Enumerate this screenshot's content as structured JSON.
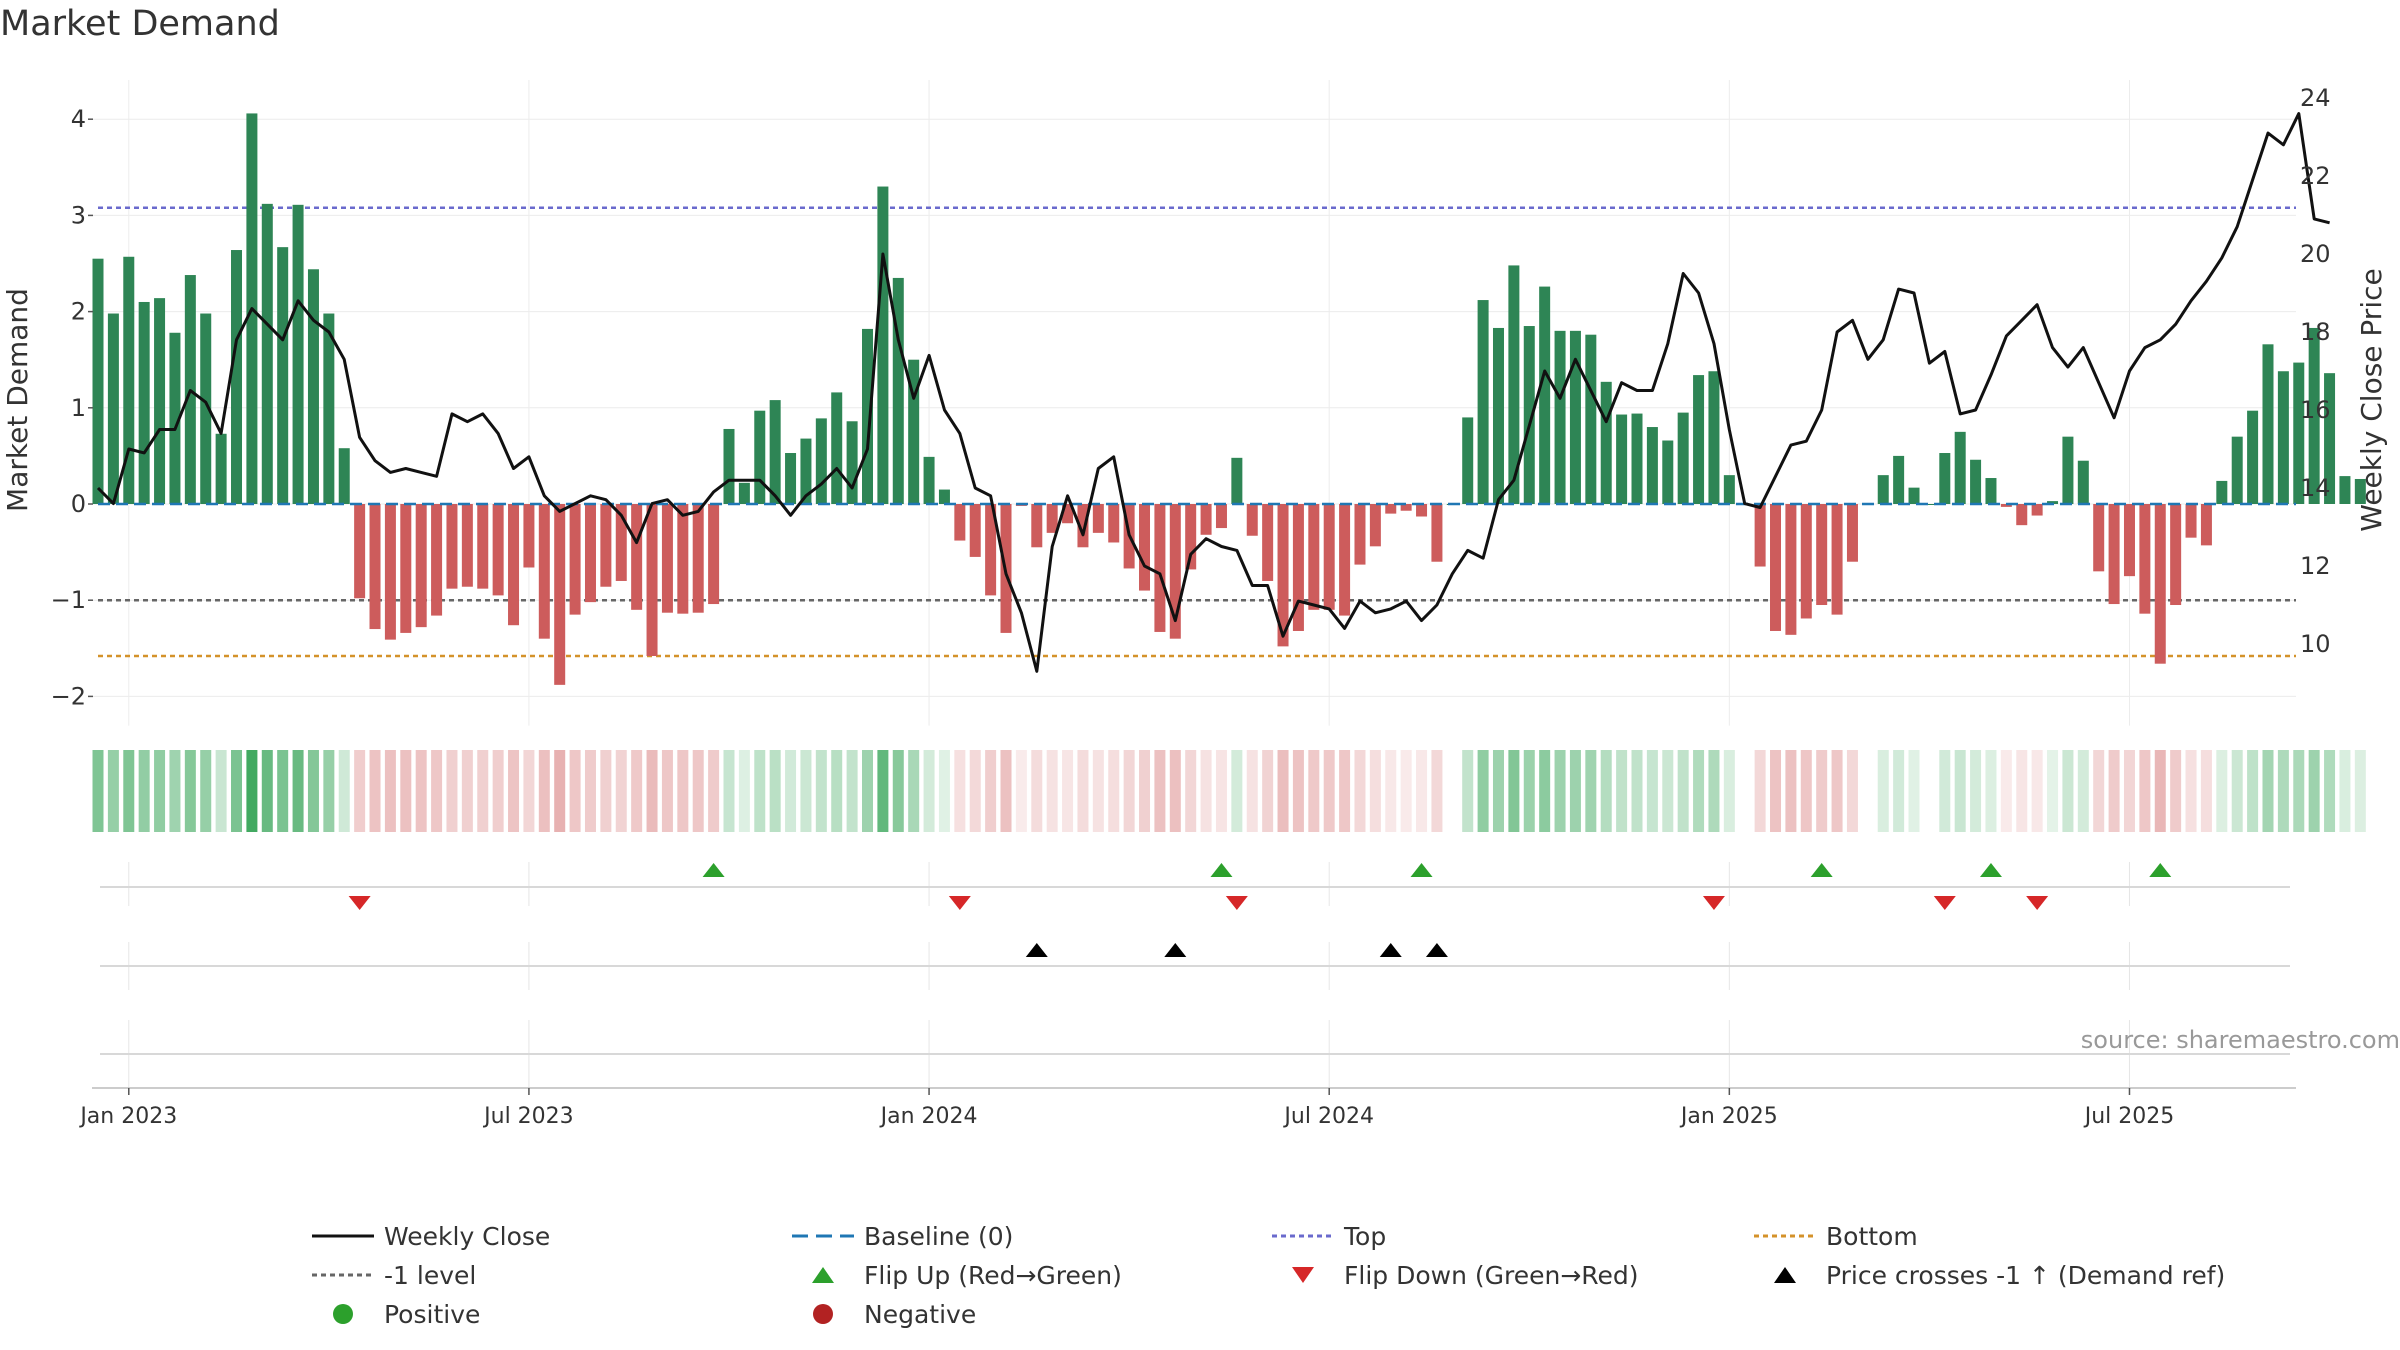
{
  "chart_data": {
    "type": "bar",
    "title": "Market Demand",
    "ylabel_left": "Market Demand",
    "ylabel_right": "Weekly Close Price",
    "source": "source: sharemaestro.com",
    "ylim_left": [
      -2.2,
      4.4
    ],
    "ylim_right": [
      8.5,
      24.5
    ],
    "left_ticks": [
      -2,
      -1,
      0,
      1,
      2,
      3,
      4
    ],
    "left_tick_labels": [
      "−2",
      "−1",
      "0",
      "1",
      "2",
      "3",
      "4"
    ],
    "right_ticks": [
      10,
      12,
      14,
      16,
      18,
      20,
      22,
      24
    ],
    "x_ticks": [
      {
        "label": "Jan 2023",
        "week": 2
      },
      {
        "label": "Jul 2023",
        "week": 28
      },
      {
        "label": "Jan 2024",
        "week": 54
      },
      {
        "label": "Jul 2024",
        "week": 80
      },
      {
        "label": "Jan 2025",
        "week": 106
      },
      {
        "label": "Jul 2025",
        "week": 132
      }
    ],
    "levels": {
      "top": 3.08,
      "minus_one": -1.0,
      "bottom": -1.58
    },
    "colors": {
      "positive": "#2e8555",
      "negative": "#cd5c5c",
      "price": "#111111",
      "baseline": "#1f77b4",
      "top": "#6a6acd",
      "minus_one": "#666666",
      "bottom": "#d4922a",
      "flip_up": "#2ca02c",
      "flip_down": "#d62728",
      "cross": "#000000",
      "positive_dot": "#2ca02c",
      "negative_dot": "#b22222"
    },
    "demand": [
      2.55,
      1.98,
      2.57,
      2.1,
      2.14,
      1.78,
      2.38,
      1.98,
      0.73,
      2.64,
      4.06,
      3.12,
      2.67,
      3.11,
      2.44,
      1.98,
      0.58,
      -0.98,
      -1.3,
      -1.41,
      -1.34,
      -1.28,
      -1.16,
      -0.88,
      -0.86,
      -0.88,
      -0.95,
      -1.26,
      -0.66,
      -1.4,
      -1.88,
      -1.15,
      -1.02,
      -0.86,
      -0.8,
      -1.1,
      -1.58,
      -1.13,
      -1.14,
      -1.13,
      -1.04,
      0.78,
      0.22,
      0.97,
      1.08,
      0.53,
      0.68,
      0.89,
      1.16,
      0.86,
      1.82,
      3.3,
      2.35,
      1.5,
      0.49,
      0.15,
      -0.38,
      -0.55,
      -0.95,
      -1.34,
      -0.02,
      -0.45,
      -0.3,
      -0.2,
      -0.45,
      -0.3,
      -0.4,
      -0.67,
      -0.9,
      -1.33,
      -1.4,
      -0.68,
      -0.32,
      -0.25,
      0.48,
      -0.33,
      -0.8,
      -1.48,
      -1.32,
      -1.1,
      -1.1,
      -1.16,
      -0.63,
      -0.44,
      -0.1,
      -0.07,
      -0.13,
      -0.6,
      0.0,
      0.9,
      2.12,
      1.83,
      2.48,
      1.85,
      2.26,
      1.8,
      1.8,
      1.76,
      1.27,
      0.93,
      0.94,
      0.8,
      0.66,
      0.95,
      1.34,
      1.38,
      0.3,
      0.0,
      -0.65,
      -1.32,
      -1.36,
      -1.19,
      -1.05,
      -1.15,
      -0.6,
      0.0,
      0.3,
      0.5,
      0.17,
      0.0,
      0.53,
      0.75,
      0.46,
      0.27,
      -0.03,
      -0.22,
      -0.12,
      0.03,
      0.7,
      0.45,
      -0.7,
      -1.04,
      -0.75,
      -1.14,
      -1.66,
      -1.05,
      -0.35,
      -0.43,
      0.24,
      0.7,
      0.97,
      1.66,
      1.38,
      1.47,
      1.83,
      1.36,
      0.29,
      0.26
    ],
    "price": [
      14.0,
      13.6,
      15.0,
      14.9,
      15.5,
      15.5,
      16.5,
      16.2,
      15.4,
      17.8,
      18.6,
      18.2,
      17.8,
      18.8,
      18.3,
      18.0,
      17.3,
      15.3,
      14.7,
      14.4,
      14.5,
      14.4,
      14.3,
      15.9,
      15.7,
      15.9,
      15.4,
      14.5,
      14.8,
      13.8,
      13.4,
      13.6,
      13.8,
      13.7,
      13.3,
      12.6,
      13.6,
      13.7,
      13.3,
      13.4,
      13.9,
      14.2,
      14.2,
      14.2,
      13.8,
      13.3,
      13.8,
      14.1,
      14.5,
      14.0,
      15.0,
      20.0,
      17.8,
      16.3,
      17.4,
      16.0,
      15.4,
      14.0,
      13.8,
      11.8,
      10.8,
      9.3,
      12.5,
      13.8,
      12.8,
      14.5,
      14.8,
      12.8,
      12.0,
      11.8,
      10.6,
      12.3,
      12.7,
      12.5,
      12.4,
      11.5,
      11.5,
      10.2,
      11.1,
      11.0,
      10.9,
      10.4,
      11.1,
      10.8,
      10.9,
      11.1,
      10.6,
      11.0,
      11.8,
      12.4,
      12.2,
      13.7,
      14.2,
      15.6,
      17.0,
      16.3,
      17.3,
      16.5,
      15.7,
      16.7,
      16.5,
      16.5,
      17.7,
      19.5,
      19.0,
      17.7,
      15.5,
      13.6,
      13.5,
      14.3,
      15.1,
      15.2,
      16.0,
      18.0,
      18.3,
      17.3,
      17.8,
      19.1,
      19.0,
      17.2,
      17.5,
      15.9,
      16.0,
      16.9,
      17.9,
      18.3,
      18.7,
      17.6,
      17.1,
      17.6,
      16.7,
      15.8,
      17.0,
      17.6,
      17.8,
      18.2,
      18.8,
      19.3,
      19.9,
      20.7,
      21.9,
      23.1,
      22.8,
      23.6,
      20.9,
      20.8
    ],
    "flip_up_weeks": [
      40,
      73,
      86,
      112,
      123,
      134
    ],
    "flip_down_weeks": [
      17,
      56,
      74,
      105,
      120,
      126
    ],
    "cross_weeks": [
      61,
      70,
      84,
      87
    ],
    "legend": [
      {
        "label": "Weekly Close",
        "kind": "line"
      },
      {
        "label": "Baseline (0)",
        "kind": "dash"
      },
      {
        "label": "Top",
        "kind": "dot-top"
      },
      {
        "label": "Bottom",
        "kind": "dot-bottom"
      },
      {
        "label": "-1 level",
        "kind": "dot-minus"
      },
      {
        "label": "Flip Up (Red→Green)",
        "kind": "tri-up"
      },
      {
        "label": "Flip Down (Green→Red)",
        "kind": "tri-down"
      },
      {
        "label": "Price crosses -1 ↑ (Demand ref)",
        "kind": "tri-black"
      },
      {
        "label": "Positive",
        "kind": "dot-pos"
      },
      {
        "label": "Negative",
        "kind": "dot-neg"
      }
    ]
  }
}
